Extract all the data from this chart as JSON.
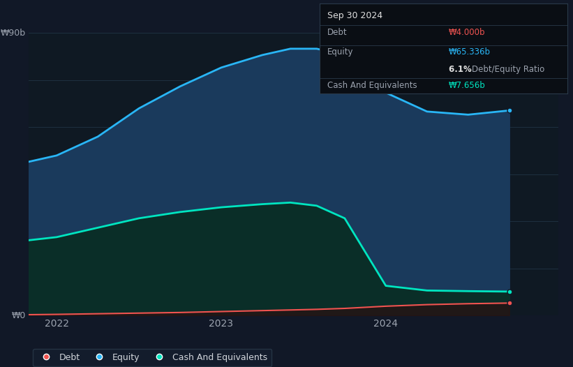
{
  "background_color": "#111827",
  "plot_bg_color": "#0f1923",
  "grid_color": "#1e3040",
  "label_color": "#9ca3af",
  "ylabel_bottom": "₩0",
  "ylabel_top": "₩90b",
  "xlabels": [
    "2022",
    "2023",
    "2024"
  ],
  "equity_color": "#29b6f6",
  "equity_fill": "#1a3a5c",
  "cash_color": "#00e5c0",
  "cash_fill": "#0a2e28",
  "debt_color": "#ef5350",
  "debt_fill": "#2a1010",
  "ylim": [
    0,
    90
  ],
  "xlim_min": 2021.83,
  "xlim_max": 2025.05,
  "equity_data": {
    "x": [
      2021.83,
      2022.0,
      2022.25,
      2022.5,
      2022.75,
      2023.0,
      2023.25,
      2023.42,
      2023.58,
      2023.75,
      2024.0,
      2024.25,
      2024.5,
      2024.75
    ],
    "y": [
      49,
      51,
      57,
      66,
      73,
      79,
      83,
      85,
      85,
      83,
      71,
      65,
      64,
      65.336
    ]
  },
  "cash_data": {
    "x": [
      2021.83,
      2022.0,
      2022.25,
      2022.5,
      2022.75,
      2023.0,
      2023.25,
      2023.42,
      2023.58,
      2023.75,
      2024.0,
      2024.25,
      2024.5,
      2024.75
    ],
    "y": [
      24,
      25,
      28,
      31,
      33,
      34.5,
      35.5,
      36,
      35,
      31,
      9.5,
      8,
      7.8,
      7.656
    ]
  },
  "debt_data": {
    "x": [
      2021.83,
      2022.0,
      2022.25,
      2022.5,
      2022.75,
      2023.0,
      2023.25,
      2023.42,
      2023.58,
      2023.75,
      2024.0,
      2024.25,
      2024.5,
      2024.75
    ],
    "y": [
      0.3,
      0.4,
      0.6,
      0.8,
      1.0,
      1.3,
      1.6,
      1.8,
      2.0,
      2.3,
      3.0,
      3.5,
      3.8,
      4.0
    ]
  },
  "tooltip": {
    "date": "Sep 30 2024",
    "debt_label": "Debt",
    "debt_value": "₩4.000b",
    "equity_label": "Equity",
    "equity_value": "₩65.336b",
    "ratio_value": "6.1%",
    "ratio_label": "Debt/Equity Ratio",
    "cash_label": "Cash And Equivalents",
    "cash_value": "₩7.656b",
    "bg_color": "#0a0e14",
    "border_color": "#2a3a4a",
    "text_color": "#9ca3af",
    "date_color": "#e0e0e0",
    "debt_value_color": "#ef5350",
    "equity_value_color": "#29b6f6",
    "ratio_bold_color": "#e0e0e0",
    "cash_value_color": "#00e5c0"
  },
  "legend": {
    "debt_label": "Debt",
    "equity_label": "Equity",
    "cash_label": "Cash And Equivalents",
    "bg_color": "#141e2e",
    "border_color": "#2a3a4a",
    "text_color": "#d1d5db"
  },
  "marker_x": 2024.75,
  "marker_equity_y": 65.336,
  "marker_cash_y": 7.656,
  "marker_debt_y": 4.0
}
